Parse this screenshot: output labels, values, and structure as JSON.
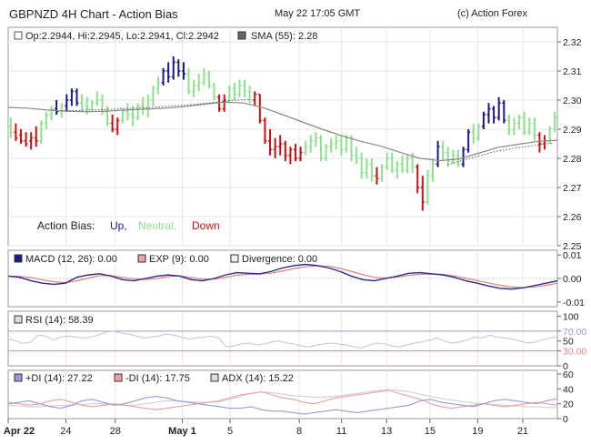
{
  "header": {
    "title": "GBPNZD 4H Chart - Action Bias",
    "datetime": "May 22 17:05 GMT",
    "copyright": "(c) Action Forex"
  },
  "colors": {
    "up": "#1a1a8c",
    "neutral": "#90e090",
    "down": "#cc1111",
    "sma": "#888888",
    "grid": "#e6e6e6",
    "border": "#999999"
  },
  "chart_data": [
    {
      "type": "ohlc",
      "ohlc_label": "Op:2.2944, Hi:2.2945, Lo:2.2941, Cl:2.2942",
      "sma_label": "SMA (55): 2.28",
      "ylim": [
        2.25,
        2.325
      ],
      "yticks": [
        "2.32",
        "2.31",
        "2.30",
        "2.29",
        "2.28",
        "2.27",
        "2.26",
        "2.25"
      ],
      "ytick_values": [
        2.32,
        2.31,
        2.3,
        2.29,
        2.28,
        2.27,
        2.26,
        2.25
      ],
      "bias_legend": {
        "label": "Action Bias:",
        "up": "Up,",
        "neutral": "Neutral,",
        "down": "Down"
      },
      "bars": [
        [
          2.291,
          2.294,
          2.287,
          2.289,
          "n"
        ],
        [
          2.289,
          2.292,
          2.286,
          2.287,
          "d"
        ],
        [
          2.288,
          2.29,
          2.285,
          2.286,
          "d"
        ],
        [
          2.286,
          2.289,
          2.284,
          2.285,
          "d"
        ],
        [
          2.286,
          2.289,
          2.283,
          2.287,
          "d"
        ],
        [
          2.287,
          2.291,
          2.284,
          2.286,
          "d"
        ],
        [
          2.286,
          2.293,
          2.285,
          2.292,
          "n"
        ],
        [
          2.292,
          2.296,
          2.29,
          2.295,
          "n"
        ],
        [
          2.295,
          2.298,
          2.293,
          2.297,
          "n"
        ],
        [
          2.297,
          2.3,
          2.295,
          2.296,
          "u"
        ],
        [
          2.296,
          2.299,
          2.294,
          2.298,
          "n"
        ],
        [
          2.298,
          2.302,
          2.296,
          2.3,
          "u"
        ],
        [
          2.3,
          2.304,
          2.298,
          2.303,
          "u"
        ],
        [
          2.303,
          2.304,
          2.298,
          2.299,
          "u"
        ],
        [
          2.299,
          2.302,
          2.296,
          2.298,
          "n"
        ],
        [
          2.298,
          2.301,
          2.295,
          2.297,
          "n"
        ],
        [
          2.297,
          2.3,
          2.296,
          2.299,
          "n"
        ],
        [
          2.299,
          2.303,
          2.298,
          2.3,
          "n"
        ],
        [
          2.3,
          2.302,
          2.295,
          2.296,
          "n"
        ],
        [
          2.296,
          2.298,
          2.291,
          2.292,
          "n"
        ],
        [
          2.292,
          2.295,
          2.289,
          2.29,
          "d"
        ],
        [
          2.29,
          2.294,
          2.288,
          2.293,
          "d"
        ],
        [
          2.293,
          2.297,
          2.292,
          2.296,
          "n"
        ],
        [
          2.296,
          2.299,
          2.293,
          2.295,
          "n"
        ],
        [
          2.295,
          2.298,
          2.291,
          2.294,
          "n"
        ],
        [
          2.294,
          2.299,
          2.293,
          2.298,
          "n"
        ],
        [
          2.298,
          2.301,
          2.295,
          2.297,
          "n"
        ],
        [
          2.297,
          2.302,
          2.294,
          2.3,
          "n"
        ],
        [
          2.3,
          2.305,
          2.298,
          2.304,
          "n"
        ],
        [
          2.304,
          2.308,
          2.302,
          2.306,
          "n"
        ],
        [
          2.306,
          2.311,
          2.305,
          2.31,
          "u"
        ],
        [
          2.31,
          2.313,
          2.306,
          2.308,
          "u"
        ],
        [
          2.308,
          2.315,
          2.307,
          2.313,
          "u"
        ],
        [
          2.313,
          2.314,
          2.308,
          2.31,
          "u"
        ],
        [
          2.31,
          2.313,
          2.307,
          2.309,
          "u"
        ],
        [
          2.309,
          2.311,
          2.302,
          2.303,
          "n"
        ],
        [
          2.303,
          2.307,
          2.301,
          2.305,
          "n"
        ],
        [
          2.305,
          2.309,
          2.303,
          2.306,
          "n"
        ],
        [
          2.306,
          2.311,
          2.305,
          2.309,
          "n"
        ],
        [
          2.309,
          2.31,
          2.304,
          2.305,
          "n"
        ],
        [
          2.305,
          2.306,
          2.3,
          2.301,
          "n"
        ],
        [
          2.301,
          2.302,
          2.296,
          2.297,
          "d"
        ],
        [
          2.297,
          2.302,
          2.296,
          2.3,
          "d"
        ],
        [
          2.3,
          2.305,
          2.299,
          2.304,
          "n"
        ],
        [
          2.304,
          2.306,
          2.3,
          2.302,
          "n"
        ],
        [
          2.302,
          2.307,
          2.301,
          2.305,
          "n"
        ],
        [
          2.305,
          2.307,
          2.301,
          2.303,
          "n"
        ],
        [
          2.303,
          2.305,
          2.299,
          2.3,
          "n"
        ],
        [
          2.3,
          2.303,
          2.298,
          2.302,
          "d"
        ],
        [
          2.302,
          2.302,
          2.292,
          2.293,
          "d"
        ],
        [
          2.293,
          2.294,
          2.285,
          2.286,
          "d"
        ],
        [
          2.286,
          2.29,
          2.281,
          2.283,
          "d"
        ],
        [
          2.283,
          2.287,
          2.28,
          2.284,
          "d"
        ],
        [
          2.284,
          2.288,
          2.281,
          2.285,
          "d"
        ],
        [
          2.285,
          2.286,
          2.279,
          2.281,
          "d"
        ],
        [
          2.281,
          2.284,
          2.278,
          2.283,
          "d"
        ],
        [
          2.283,
          2.285,
          2.279,
          2.28,
          "d"
        ],
        [
          2.28,
          2.284,
          2.279,
          2.282,
          "d"
        ],
        [
          2.282,
          2.286,
          2.281,
          2.284,
          "n"
        ],
        [
          2.284,
          2.288,
          2.282,
          2.286,
          "n"
        ],
        [
          2.286,
          2.289,
          2.284,
          2.287,
          "n"
        ],
        [
          2.287,
          2.288,
          2.279,
          2.28,
          "n"
        ],
        [
          2.28,
          2.285,
          2.279,
          2.284,
          "n"
        ],
        [
          2.284,
          2.287,
          2.282,
          2.285,
          "n"
        ],
        [
          2.285,
          2.288,
          2.283,
          2.286,
          "n"
        ],
        [
          2.286,
          2.288,
          2.281,
          2.283,
          "n"
        ],
        [
          2.283,
          2.288,
          2.282,
          2.287,
          "n"
        ],
        [
          2.287,
          2.288,
          2.279,
          2.281,
          "n"
        ],
        [
          2.281,
          2.284,
          2.278,
          2.28,
          "n"
        ],
        [
          2.28,
          2.282,
          2.273,
          2.275,
          "n"
        ],
        [
          2.275,
          2.28,
          2.273,
          2.278,
          "n"
        ],
        [
          2.278,
          2.28,
          2.272,
          2.274,
          "n"
        ],
        [
          2.274,
          2.277,
          2.271,
          2.273,
          "d"
        ],
        [
          2.273,
          2.278,
          2.272,
          2.277,
          "n"
        ],
        [
          2.277,
          2.282,
          2.276,
          2.28,
          "n"
        ],
        [
          2.28,
          2.282,
          2.275,
          2.276,
          "n"
        ],
        [
          2.276,
          2.279,
          2.273,
          2.278,
          "n"
        ],
        [
          2.278,
          2.281,
          2.275,
          2.276,
          "n"
        ],
        [
          2.276,
          2.281,
          2.275,
          2.28,
          "n"
        ],
        [
          2.28,
          2.282,
          2.275,
          2.277,
          "n"
        ],
        [
          2.277,
          2.278,
          2.268,
          2.27,
          "d"
        ],
        [
          2.27,
          2.274,
          2.262,
          2.265,
          "d"
        ],
        [
          2.265,
          2.276,
          2.264,
          2.274,
          "n"
        ],
        [
          2.274,
          2.28,
          2.272,
          2.278,
          "n"
        ],
        [
          2.278,
          2.286,
          2.277,
          2.284,
          "u"
        ],
        [
          2.284,
          2.286,
          2.279,
          2.282,
          "n"
        ],
        [
          2.282,
          2.284,
          2.277,
          2.279,
          "n"
        ],
        [
          2.279,
          2.283,
          2.278,
          2.281,
          "n"
        ],
        [
          2.281,
          2.283,
          2.277,
          2.278,
          "n"
        ],
        [
          2.278,
          2.284,
          2.277,
          2.283,
          "u"
        ],
        [
          2.283,
          2.29,
          2.282,
          2.289,
          "u"
        ],
        [
          2.289,
          2.292,
          2.285,
          2.287,
          "n"
        ],
        [
          2.287,
          2.292,
          2.286,
          2.291,
          "n"
        ],
        [
          2.291,
          2.296,
          2.29,
          2.295,
          "u"
        ],
        [
          2.295,
          2.299,
          2.292,
          2.297,
          "u"
        ],
        [
          2.297,
          2.298,
          2.292,
          2.294,
          "u"
        ],
        [
          2.294,
          2.301,
          2.293,
          2.299,
          "u"
        ],
        [
          2.299,
          2.3,
          2.292,
          2.293,
          "u"
        ],
        [
          2.293,
          2.295,
          2.288,
          2.29,
          "n"
        ],
        [
          2.29,
          2.294,
          2.288,
          2.292,
          "n"
        ],
        [
          2.292,
          2.295,
          2.29,
          2.294,
          "n"
        ],
        [
          2.294,
          2.296,
          2.288,
          2.289,
          "n"
        ],
        [
          2.289,
          2.294,
          2.288,
          2.292,
          "n"
        ],
        [
          2.292,
          2.294,
          2.286,
          2.288,
          "n"
        ],
        [
          2.288,
          2.289,
          2.282,
          2.285,
          "d"
        ],
        [
          2.285,
          2.288,
          2.283,
          2.286,
          "d"
        ],
        [
          2.286,
          2.291,
          2.285,
          2.29,
          "n"
        ],
        [
          2.29,
          2.296,
          2.289,
          2.294,
          "n"
        ]
      ],
      "sma_values": [
        2.2975,
        2.2972,
        2.2966,
        2.2962,
        2.296,
        2.2962,
        2.2966,
        2.2969,
        2.2972,
        2.2978,
        2.2986,
        2.2993,
        2.299,
        2.2974,
        2.295,
        2.2925,
        2.29,
        2.2878,
        2.2858,
        2.2842,
        2.282,
        2.28,
        2.2792,
        2.2798,
        2.2818,
        2.2838,
        2.2848,
        2.2858,
        2.2862
      ],
      "dotted_values": [
        2.2963,
        2.2968,
        2.2975,
        2.2985,
        2.2998,
        2.3002,
        2.2778,
        2.28,
        2.2825,
        2.284,
        2.2852
      ]
    },
    {
      "type": "line",
      "macd_label": "MACD (12, 26): 0.00",
      "exp_label": "EXP (9): 0.00",
      "div_label": "Divergence: 0.00",
      "ylim": [
        -0.012,
        0.012
      ],
      "yticks": [
        "0.01",
        "0.00",
        "-0.01"
      ],
      "ytick_values": [
        0.01,
        0.0,
        -0.01
      ],
      "macd": [
        0.001,
        0.0005,
        -0.001,
        -0.002,
        -0.0025,
        -0.002,
        0.0005,
        0.0015,
        0.002,
        0.001,
        -0.0005,
        -0.001,
        0.0,
        0.001,
        0.0015,
        0.001,
        -0.0005,
        -0.001,
        0.0,
        0.0015,
        0.0025,
        0.0022,
        0.002,
        0.003,
        0.0045,
        0.0055,
        0.006,
        0.0055,
        0.0045,
        0.003,
        0.001,
        -0.0005,
        -0.001,
        0.0,
        0.001,
        0.0022,
        0.0025,
        0.002,
        0.0015,
        0.0005,
        -0.001,
        -0.002,
        -0.0032,
        -0.0042,
        -0.0045,
        -0.004,
        -0.003,
        -0.002,
        -0.001
      ],
      "exp": [
        0.001,
        0.0009,
        0.0004,
        -0.0006,
        -0.0014,
        -0.0018,
        -0.001,
        0.0002,
        0.0012,
        0.0012,
        0.0005,
        -0.0002,
        -0.0004,
        0.0,
        0.0008,
        0.0011,
        0.0004,
        -0.0003,
        -0.0003,
        0.0005,
        0.0014,
        0.0018,
        0.0019,
        0.0023,
        0.0032,
        0.0042,
        0.005,
        0.0054,
        0.0052,
        0.0043,
        0.003,
        0.0016,
        0.0005,
        0.0002,
        0.0006,
        0.0013,
        0.0018,
        0.0019,
        0.0017,
        0.0011,
        0.0001,
        -0.0009,
        -0.0019,
        -0.0029,
        -0.0036,
        -0.0039,
        -0.0036,
        -0.0029,
        -0.002
      ]
    },
    {
      "type": "line",
      "rsi_label": "RSI (14): 58.39",
      "ylim": [
        0,
        110
      ],
      "yticks": [
        "100",
        "70.00",
        "50",
        "30.00",
        "0"
      ],
      "ytick_values": [
        100,
        70,
        50,
        30,
        0
      ],
      "rsi": [
        55,
        50,
        45,
        48,
        62,
        60,
        52,
        58,
        60,
        58,
        56,
        58,
        62,
        68,
        70,
        66,
        64,
        60,
        56,
        58,
        60,
        64,
        62,
        58,
        54,
        56,
        58,
        60,
        56,
        38,
        40,
        44,
        46,
        42,
        44,
        48,
        50,
        46,
        44,
        40,
        38,
        42,
        44,
        46,
        44,
        42,
        38,
        36,
        42,
        46,
        44,
        40,
        38,
        42,
        46,
        48,
        52,
        56,
        50,
        46,
        48,
        52,
        58,
        56,
        62,
        58,
        56,
        54,
        50,
        46,
        48,
        52,
        56,
        58
      ]
    },
    {
      "type": "line",
      "pdi_label": "+DI (14): 27.22",
      "mdi_label": "-DI (14): 17.75",
      "adx_label": "ADX (14): 15.22",
      "ylim": [
        0,
        65
      ],
      "yticks": [
        "60",
        "40",
        "20",
        "0"
      ],
      "ytick_values": [
        60,
        40,
        20,
        0
      ],
      "pdi": [
        20,
        22,
        24,
        20,
        16,
        14,
        18,
        24,
        26,
        22,
        18,
        20,
        24,
        28,
        30,
        28,
        24,
        22,
        20,
        18,
        16,
        14,
        14,
        16,
        12,
        10,
        10,
        8,
        6,
        8,
        10,
        12,
        10,
        8,
        10,
        12,
        14,
        16,
        18,
        24,
        26,
        22,
        20,
        18,
        16,
        20,
        24,
        26,
        24,
        22,
        20,
        24,
        27
      ],
      "mdi": [
        22,
        20,
        18,
        20,
        24,
        26,
        22,
        18,
        16,
        18,
        20,
        18,
        16,
        14,
        12,
        14,
        16,
        18,
        20,
        22,
        24,
        28,
        32,
        34,
        36,
        32,
        28,
        26,
        22,
        20,
        24,
        28,
        30,
        32,
        34,
        36,
        38,
        34,
        30,
        26,
        20,
        16,
        14,
        16,
        18,
        20,
        18,
        16,
        18,
        20,
        22,
        20,
        18
      ],
      "adx": [
        18,
        17,
        16,
        16,
        17,
        18,
        18,
        19,
        20,
        20,
        19,
        18,
        18,
        20,
        22,
        24,
        24,
        23,
        22,
        22,
        23,
        26,
        30,
        34,
        36,
        35,
        33,
        31,
        30,
        29,
        29,
        30,
        32,
        34,
        36,
        38,
        39,
        38,
        36,
        33,
        30,
        27,
        25,
        23,
        21,
        20,
        19,
        18,
        17,
        16,
        16,
        15,
        15
      ]
    }
  ],
  "xaxis": {
    "labels": [
      "Apr 22",
      "24",
      "28",
      "May 1",
      "5",
      "8",
      "11",
      "13",
      "15",
      "19",
      "21"
    ],
    "label_positions_frac": [
      0.0,
      0.105,
      0.195,
      0.317,
      0.404,
      0.53,
      0.607,
      0.689,
      0.768,
      0.855,
      0.937
    ]
  }
}
